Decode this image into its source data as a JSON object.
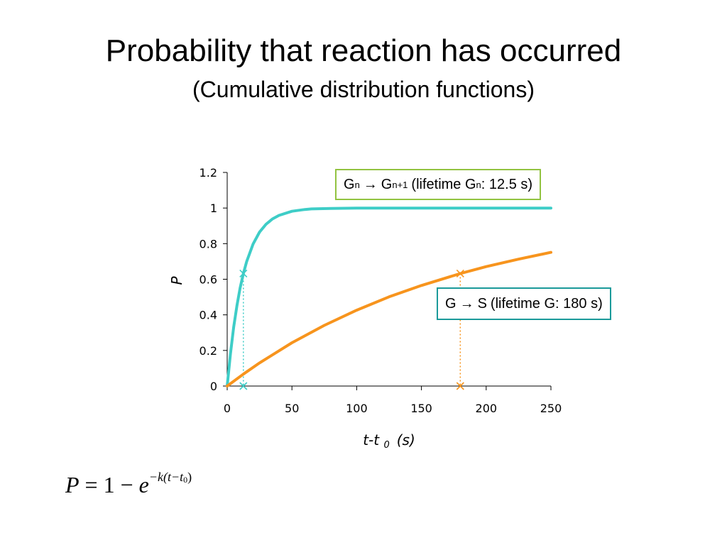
{
  "slide": {
    "title": "Probability that reaction has occurred",
    "subtitle": "(Cumulative distribution functions)"
  },
  "legend_fast": {
    "from": "G",
    "from_sub": "n",
    "arrow": "→",
    "to": "G",
    "to_sub": "n+1",
    "text": "(lifetime G",
    "text_sub": "n",
    "value": ": 12.5 s)",
    "color": "#3ecdc7",
    "border_color": "#92c341"
  },
  "legend_slow": {
    "from": "G",
    "arrow": "→",
    "to": "S",
    "text": "(lifetime G: 180 s)",
    "color": "#f7941d",
    "border_color": "#1b9a9a"
  },
  "formula": {
    "lhs": "P",
    "eq": " = 1 − ",
    "base": "e",
    "exp_a": "−k(t−t",
    "exp_sub": "0",
    "exp_b": ")"
  },
  "chart_data": {
    "type": "line",
    "title": "",
    "xlabel": "t-t",
    "xlabel_sub": "0",
    "xlabel_unit": "(s)",
    "ylabel": "P",
    "xlim": [
      0,
      250
    ],
    "ylim": [
      0,
      1.2
    ],
    "xticks": [
      "0",
      "50",
      "100",
      "150",
      "200",
      "250"
    ],
    "yticks": [
      "0",
      "0.2",
      "0.4",
      "0.6",
      "0.8",
      "1",
      "1.2"
    ],
    "grid": false,
    "series": [
      {
        "lifetime": 12.5,
        "color": "#3ecdc7",
        "x": [
          0,
          2.5,
          5,
          7.5,
          10,
          12.5,
          15,
          20,
          25,
          30,
          35,
          40,
          50,
          60,
          65,
          80,
          100,
          150,
          200,
          250
        ],
        "y": [
          0,
          0.181,
          0.33,
          0.451,
          0.551,
          0.632,
          0.699,
          0.798,
          0.865,
          0.909,
          0.939,
          0.959,
          0.982,
          0.992,
          0.995,
          0.998,
          1.0,
          1.0,
          1.0,
          1.0
        ],
        "marker": {
          "x": 12.5,
          "y": 0.632
        }
      },
      {
        "lifetime": 180,
        "color": "#f7941d",
        "x": [
          0,
          12.5,
          25,
          50,
          75,
          100,
          125,
          150,
          180,
          200,
          225,
          250
        ],
        "y": [
          0,
          0.067,
          0.13,
          0.243,
          0.341,
          0.426,
          0.501,
          0.565,
          0.632,
          0.671,
          0.713,
          0.751
        ],
        "marker": {
          "x": 180,
          "y": 0.632
        }
      }
    ]
  }
}
